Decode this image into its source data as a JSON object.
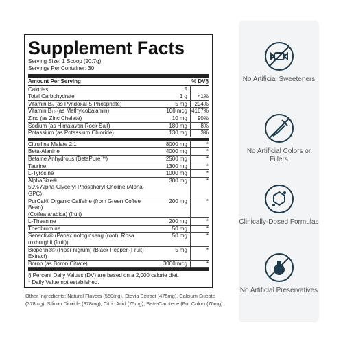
{
  "label": {
    "title": "Supplement Facts",
    "serving_size": "Serving Size: 1 Scoop (20.7g)",
    "servings_per_container": "Servings Per Container: 30",
    "header": [
      "Amount Per Serving",
      "% DV§"
    ],
    "nutrients": [
      {
        "name": [
          "Calories"
        ],
        "amount": "5",
        "dv": ""
      },
      {
        "name": [
          "Total Carbohydrate"
        ],
        "amount": "1 g",
        "dv": "<1%"
      },
      {
        "name": [
          "Vitamin B₆ (as Pyridoxal-5-Phosphate)"
        ],
        "amount": "5 mg",
        "dv": "294%"
      },
      {
        "name": [
          "Vitamin B₁₂ (as Methylcobalamin)"
        ],
        "amount": "100 mcg",
        "dv": "4167%"
      },
      {
        "name": [
          "Zinc (as Zinc Chelate)"
        ],
        "amount": "10 mg",
        "dv": "90%"
      },
      {
        "name": [
          "Sodium (as Himalayan Rock Salt)"
        ],
        "amount": "180 mg",
        "dv": "8%"
      },
      {
        "name": [
          "Potassium (as Potassium Chloride)"
        ],
        "amount": "130 mg",
        "dv": "3%"
      }
    ],
    "ingredients": [
      {
        "name": [
          "Citrulline Malate 2:1"
        ],
        "amount": "8000 mg",
        "dv": "*"
      },
      {
        "name": [
          "Beta-Alanine"
        ],
        "amount": "4000 mg",
        "dv": "*"
      },
      {
        "name": [
          "Betaine Anhydrous (BetaPure™)"
        ],
        "amount": "2500 mg",
        "dv": "*"
      },
      {
        "name": [
          "Taurine"
        ],
        "amount": "1300 mg",
        "dv": "*"
      },
      {
        "name": [
          "L-Tyrosine"
        ],
        "amount": "1000 mg",
        "dv": "*"
      },
      {
        "name": [
          "AlphaSize®",
          "50% Alpha-Glyceryl Phosphoryl Choline (Alpha-GPC)"
        ],
        "amount": "300 mg",
        "dv": "*"
      },
      {
        "name": [
          "PurCaf® Organic Caffeine (from Green Coffee Bean)",
          "(Coffea arabica) (fruit)"
        ],
        "amount": "200 mg",
        "dv": "*"
      },
      {
        "name": [
          "L-Theanine"
        ],
        "amount": "200 mg",
        "dv": "*"
      },
      {
        "name": [
          "Theobromine"
        ],
        "amount": "50 mg",
        "dv": "*"
      },
      {
        "name": [
          "Senactiv® (Panax notoginseng (root), Rosa roxburghii (fruit))"
        ],
        "amount": "50 mg",
        "dv": "*"
      },
      {
        "name": [
          "Bioperine® (Piper nigrum) (Black Pepper (Fruit) Extract)"
        ],
        "amount": "5 mg",
        "dv": "*"
      },
      {
        "name": [
          "Boron (as Boron Citrate)"
        ],
        "amount": "3000 mcg",
        "dv": "*"
      }
    ],
    "footnotes": [
      "§ Percent Daily Values (DV) are based on a 2,000 calorie diet.",
      "* Daily Value not established."
    ]
  },
  "other_ingredients": "Other Ingredients: Natural Flavors (550mg), Stevia Extract (475mg), Calcium Silicate (378mg), Silicon Dioxide (378mg), Citric Acid (75mg), Beta-Carotene (For Color) (70mg).",
  "features": [
    "No Artificial Sweeteners",
    "No Artificial Colors or Fillers",
    "Clinically-Dosed Formulas",
    "No Artificial Preservatives"
  ]
}
